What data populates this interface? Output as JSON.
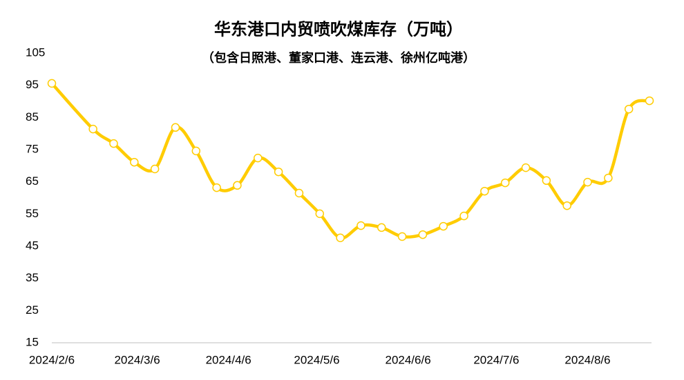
{
  "chart_data": {
    "type": "line",
    "title": "华东港口内贸喷吹煤库存（万吨）",
    "subtitle": "（包含日照港、董家口港、连云港、徐州亿吨港）",
    "x": [
      "2024/2/6",
      "2024/2/20",
      "2024/2/27",
      "2024/3/5",
      "2024/3/12",
      "2024/3/19",
      "2024/3/26",
      "2024/4/2",
      "2024/4/9",
      "2024/4/16",
      "2024/4/23",
      "2024/4/30",
      "2024/5/7",
      "2024/5/14",
      "2024/5/21",
      "2024/5/28",
      "2024/6/4",
      "2024/6/11",
      "2024/6/18",
      "2024/6/25",
      "2024/7/2",
      "2024/7/9",
      "2024/7/16",
      "2024/7/23",
      "2024/7/30",
      "2024/8/6",
      "2024/8/13",
      "2024/8/20",
      "2024/8/27"
    ],
    "series": [
      {
        "name": "华东港口内贸喷吹煤库存",
        "color": "#ffcc00",
        "values": [
          95.6,
          81.4,
          76.9,
          71.1,
          69.0,
          81.9,
          74.6,
          63.2,
          63.9,
          72.4,
          68.1,
          61.5,
          55.1,
          47.6,
          51.4,
          50.8,
          48.0,
          48.6,
          51.2,
          54.4,
          62.1,
          64.7,
          69.4,
          65.4,
          57.6,
          64.9,
          66.2,
          87.6,
          90.2
        ]
      }
    ],
    "xlim": [
      "2024/2/6",
      "2024/8/27"
    ],
    "xticks": [
      "2024/2/6",
      "2024/3/6",
      "2024/4/6",
      "2024/5/6",
      "2024/6/6",
      "2024/7/6",
      "2024/8/6"
    ],
    "ylim": [
      15,
      105
    ],
    "yticks": [
      15,
      25,
      35,
      45,
      55,
      65,
      75,
      85,
      95,
      105
    ]
  }
}
